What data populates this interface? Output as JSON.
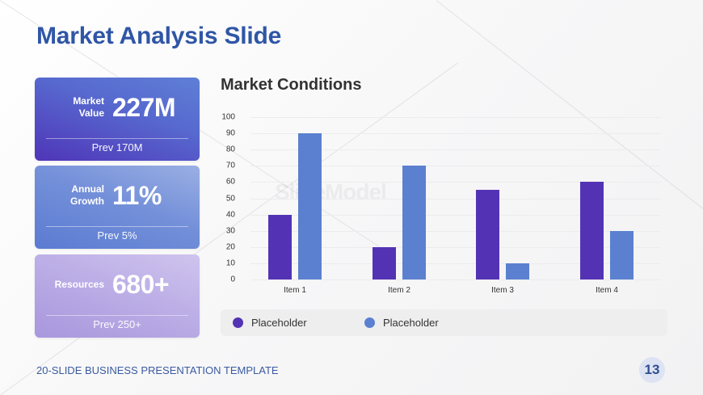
{
  "slide": {
    "title": "Market Analysis Slide",
    "footer": "20-SLIDE BUSINESS PRESENTATION TEMPLATE",
    "page_number": "13",
    "watermark": "SlideModel"
  },
  "cards": [
    {
      "label_line1": "Market",
      "label_line2": "Value",
      "value": "227M",
      "prev": "Prev 170M"
    },
    {
      "label_line1": "Annual",
      "label_line2": "Growth",
      "value": "11%",
      "prev": "Prev 5%"
    },
    {
      "label_line1": "Resources",
      "label_line2": "",
      "value": "680+",
      "prev": "Prev 250+"
    }
  ],
  "colors": {
    "title": "#2f56a6",
    "series1": "#5333b4",
    "series2": "#5b80d0",
    "legend_bg": "#eeeeef"
  },
  "chart_data": {
    "type": "bar",
    "title": "Market Conditions",
    "categories": [
      "Item 1",
      "Item 2",
      "Item 3",
      "Item 4"
    ],
    "series": [
      {
        "name": "Placeholder",
        "color": "#5333b4",
        "values": [
          40,
          20,
          55,
          60
        ]
      },
      {
        "name": "Placeholder",
        "color": "#5b80d0",
        "values": [
          90,
          70,
          10,
          30
        ]
      }
    ],
    "xlabel": "",
    "ylabel": "",
    "ylim": [
      0,
      100
    ],
    "yticks": [
      0,
      10,
      20,
      30,
      40,
      50,
      60,
      70,
      80,
      90,
      100
    ],
    "grid": true,
    "legend_position": "bottom"
  }
}
